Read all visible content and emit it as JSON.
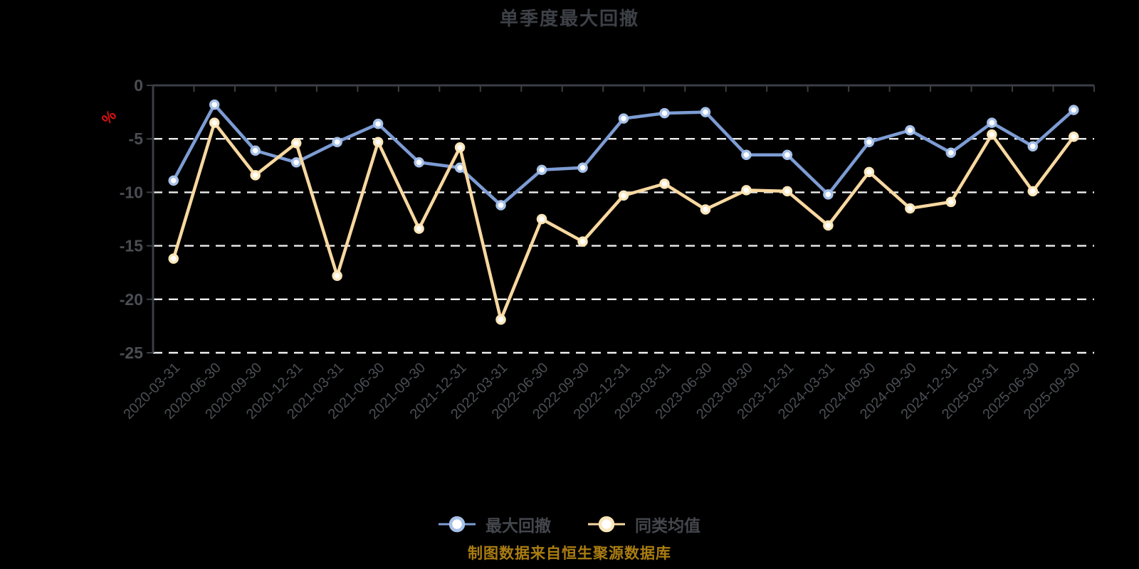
{
  "title": "单季度最大回撤",
  "y_axis": {
    "unit": "%",
    "labels": [
      "0",
      "-5",
      "-10",
      "-15",
      "-20",
      "-25"
    ],
    "values": [
      0,
      -5,
      -10,
      -15,
      -20,
      -25
    ],
    "min": -25,
    "max": 0
  },
  "chart_data": {
    "type": "line",
    "title": "单季度最大回撤",
    "ylabel": "%",
    "ylim": [
      -25,
      0
    ],
    "grid": "horizontal-dashed",
    "legend_position": "bottom",
    "categories": [
      "2020-03-31",
      "2020-06-30",
      "2020-09-30",
      "2020-12-31",
      "2021-03-31",
      "2021-06-30",
      "2021-09-30",
      "2021-12-31",
      "2022-03-31",
      "2022-06-30",
      "2022-09-30",
      "2022-12-31",
      "2023-03-31",
      "2023-06-30",
      "2023-09-30",
      "2023-12-31",
      "2024-03-31",
      "2024-06-30",
      "2024-09-30",
      "2024-12-31",
      "2025-03-31",
      "2025-06-30",
      "2025-09-30"
    ],
    "series": [
      {
        "name": "最大回撤",
        "color": "#7d9cd4",
        "ring": "#a7c1e8",
        "values": [
          -8.9,
          -1.8,
          -6.1,
          -7.2,
          -5.3,
          -3.6,
          -7.2,
          -7.7,
          -11.2,
          -7.9,
          -7.7,
          -3.1,
          -2.6,
          -2.5,
          -6.5,
          -6.5,
          -10.2,
          -5.3,
          -4.2,
          -6.3,
          -3.5,
          -5.7,
          -2.3
        ]
      },
      {
        "name": "同类均值",
        "color": "#f8d8a0",
        "ring": "#fbe6ba",
        "values": [
          -16.2,
          -3.5,
          -8.4,
          -5.4,
          -17.8,
          -5.3,
          -13.4,
          -5.8,
          -21.9,
          -12.5,
          -14.6,
          -10.3,
          -9.2,
          -11.6,
          -9.8,
          -9.9,
          -13.1,
          -8.1,
          -11.5,
          -10.9,
          -4.6,
          -9.9,
          -4.8
        ]
      }
    ]
  },
  "legend": {
    "items": [
      {
        "label": "最大回撤"
      },
      {
        "label": "同类均值"
      }
    ]
  },
  "footer": {
    "text": "制图数据来自恒生聚源数据库"
  },
  "colors": {
    "background": "#000000",
    "title": "#3d4046",
    "axis_line": "#3a3e45",
    "axis_label": "#4a4e54",
    "gridline": "#efefef",
    "unit_label": "#e01010",
    "legend_text": "#43464c",
    "footer_text": "#aa7d12"
  }
}
